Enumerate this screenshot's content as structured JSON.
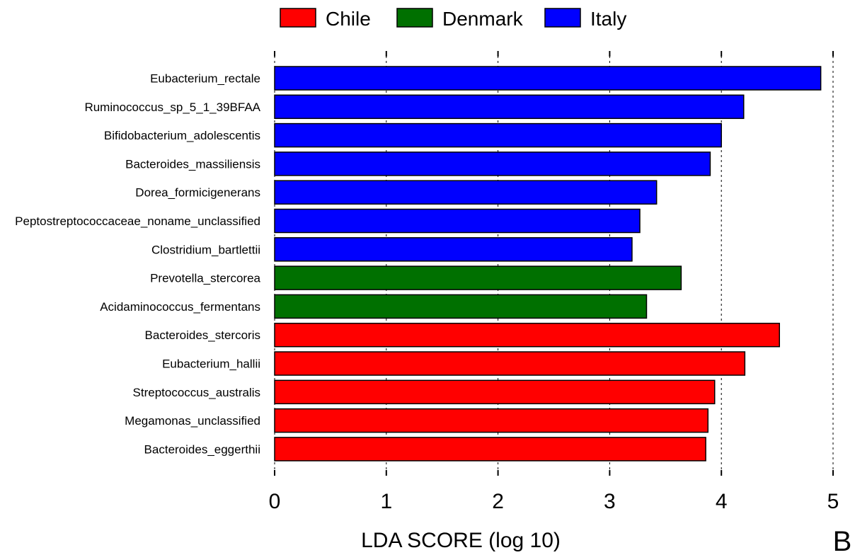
{
  "panel_label": "B",
  "chart_data": {
    "type": "bar",
    "orientation": "horizontal",
    "xlabel": "LDA SCORE (log 10)",
    "xlim": [
      0,
      5
    ],
    "xticks": [
      "0",
      "1",
      "2",
      "3",
      "4",
      "5"
    ],
    "grid": "vertical dashed",
    "legend_position": "top",
    "legend": [
      {
        "name": "Chile",
        "color": "#ff0000"
      },
      {
        "name": "Denmark",
        "color": "#007000"
      },
      {
        "name": "Italy",
        "color": "#0000ff"
      }
    ],
    "bars": [
      {
        "label": "Eubacterium_rectale",
        "value": 4.89,
        "group": "Italy"
      },
      {
        "label": "Ruminococcus_sp_5_1_39BFAA",
        "value": 4.2,
        "group": "Italy"
      },
      {
        "label": "Bifidobacterium_adolescentis",
        "value": 4.0,
        "group": "Italy"
      },
      {
        "label": "Bacteroides_massiliensis",
        "value": 3.9,
        "group": "Italy"
      },
      {
        "label": "Dorea_formicigenerans",
        "value": 3.42,
        "group": "Italy"
      },
      {
        "label": "Peptostreptococcaceae_noname_unclassified",
        "value": 3.27,
        "group": "Italy"
      },
      {
        "label": "Clostridium_bartlettii",
        "value": 3.2,
        "group": "Italy"
      },
      {
        "label": "Prevotella_stercorea",
        "value": 3.64,
        "group": "Denmark"
      },
      {
        "label": "Acidaminococcus_fermentans",
        "value": 3.33,
        "group": "Denmark"
      },
      {
        "label": "Bacteroides_stercoris",
        "value": 4.52,
        "group": "Chile"
      },
      {
        "label": "Eubacterium_hallii",
        "value": 4.21,
        "group": "Chile"
      },
      {
        "label": "Streptococcus_australis",
        "value": 3.94,
        "group": "Chile"
      },
      {
        "label": "Megamonas_unclassified",
        "value": 3.88,
        "group": "Chile"
      },
      {
        "label": "Bacteroides_eggerthii",
        "value": 3.86,
        "group": "Chile"
      }
    ]
  }
}
